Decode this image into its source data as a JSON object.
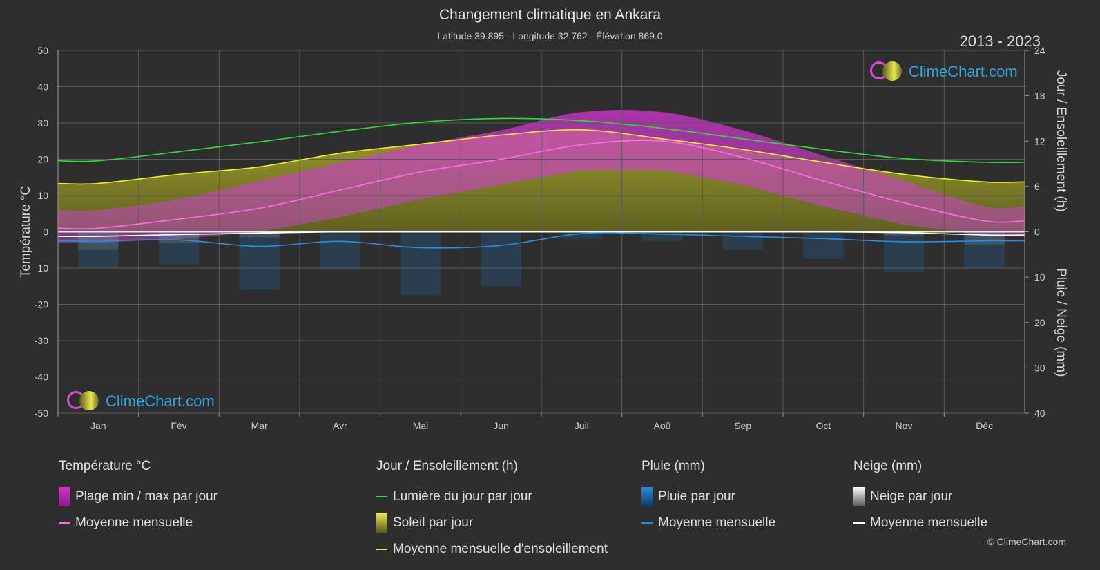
{
  "header": {
    "title": "Changement climatique en Ankara",
    "subtitle": "Latitude 39.895 - Longitude 32.762 - Élévation 869.0",
    "years": "2013 - 2023"
  },
  "brand": {
    "name": "ClimeChart.com"
  },
  "copyright": "© ClimeChart.com",
  "colors": {
    "background": "#2e2e2e",
    "temp_range": "#d633d6",
    "temp_mean": "#ff6ee6",
    "daylight": "#33dd33",
    "sunshine_fill": "#9a9a22",
    "sunshine_mean": "#eeee33",
    "rain": "#1e7bc8",
    "rain_mean": "#2a8ee0",
    "snow": "#9a9a9a",
    "snow_mean": "#ffffff"
  },
  "legend": {
    "temperature": {
      "title": "Température °C",
      "items": [
        "Plage min / max par jour",
        "Moyenne mensuelle"
      ]
    },
    "sun": {
      "title": "Jour / Ensoleillement (h)",
      "items": [
        "Lumière du jour par jour",
        "Soleil par jour",
        "Moyenne mensuelle d'ensoleillement"
      ]
    },
    "rain": {
      "title": "Pluie (mm)",
      "items": [
        "Pluie par jour",
        "Moyenne mensuelle"
      ]
    },
    "snow": {
      "title": "Neige (mm)",
      "items": [
        "Neige par jour",
        "Moyenne mensuelle"
      ]
    }
  },
  "chart_data": {
    "type": "line",
    "x": [
      "Jan",
      "Fév",
      "Mar",
      "Avr",
      "Mai",
      "Jun",
      "Juil",
      "Aoû",
      "Sep",
      "Oct",
      "Nov",
      "Déc"
    ],
    "y_left": {
      "label": "Température °C",
      "ylim": [
        -50,
        50
      ],
      "ticks": [
        50,
        40,
        30,
        20,
        10,
        0,
        -10,
        -20,
        -30,
        -40,
        -50
      ]
    },
    "y_right_top": {
      "label": "Jour / Ensoleillement (h)",
      "ylim": [
        0,
        24
      ],
      "ticks": [
        24,
        18,
        12,
        6,
        0
      ]
    },
    "y_right_bottom": {
      "label": "Pluie / Neige (mm)",
      "ylim": [
        0,
        40
      ],
      "ticks": [
        0,
        10,
        20,
        30,
        40
      ]
    },
    "grid": true,
    "series": [
      {
        "name": "Moyenne mensuelle",
        "group": "temperature",
        "values": [
          1.0,
          3.5,
          6.5,
          11.5,
          16.5,
          20.0,
          24.0,
          25.0,
          20.5,
          14.0,
          8.0,
          3.0
        ]
      },
      {
        "name": "Lumière du jour par jour",
        "group": "sun",
        "unit": "h",
        "values": [
          9.4,
          10.6,
          11.9,
          13.3,
          14.5,
          15.0,
          14.7,
          13.7,
          12.3,
          10.9,
          9.7,
          9.2
        ]
      },
      {
        "name": "Moyenne mensuelle d'ensoleillement",
        "group": "sun",
        "unit": "h",
        "values": [
          6.4,
          7.6,
          8.6,
          10.4,
          11.6,
          12.8,
          13.5,
          12.3,
          10.9,
          9.2,
          7.6,
          6.6
        ]
      },
      {
        "name": "Moyenne mensuelle",
        "group": "rain",
        "unit": "mm",
        "values": [
          2.0,
          1.8,
          3.2,
          2.1,
          3.5,
          3.0,
          0.4,
          0.5,
          1.0,
          1.5,
          2.2,
          2.0
        ]
      },
      {
        "name": "Moyenne mensuelle",
        "group": "snow",
        "unit": "mm",
        "values": [
          1.0,
          0.6,
          0.3,
          0.0,
          0.0,
          0.0,
          0.0,
          0.0,
          0.0,
          0.0,
          0.2,
          0.7
        ]
      }
    ],
    "temp_range": {
      "name": "Plage min / max par jour",
      "min": [
        -3,
        -2,
        0,
        4,
        9,
        13,
        17,
        17,
        13,
        7,
        2,
        -1
      ],
      "max": [
        6,
        9,
        14,
        19,
        24,
        28,
        33,
        33,
        28,
        21,
        14,
        7
      ]
    },
    "sunshine_daily": {
      "name": "Soleil par jour",
      "unit": "h",
      "values": [
        6.4,
        7.6,
        8.6,
        10.4,
        11.6,
        12.8,
        13.5,
        12.3,
        10.9,
        9.2,
        7.6,
        6.6
      ]
    }
  }
}
